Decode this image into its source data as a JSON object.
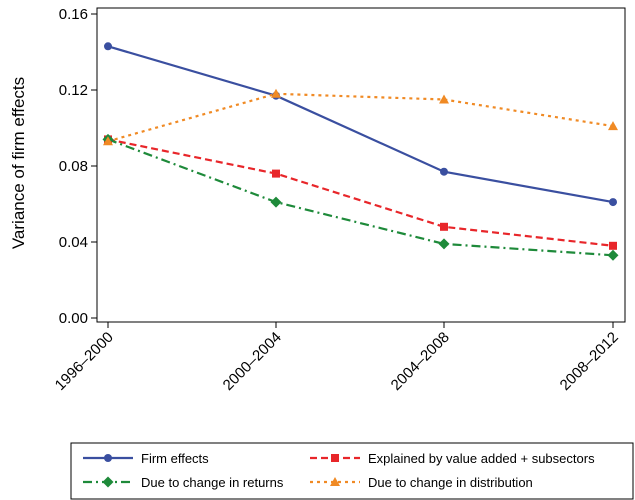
{
  "chart_data": {
    "type": "line",
    "ylabel": "Variance of firm effects",
    "xlabel": "",
    "categories": [
      "1996–2000",
      "2000–2004",
      "2004–2008",
      "2008–2012"
    ],
    "yticks": [
      "0.00",
      "0.04",
      "0.08",
      "0.12",
      "0.16"
    ],
    "ylim": [
      0,
      0.16
    ],
    "grid": false,
    "legend_position": "bottom",
    "series": [
      {
        "name": "Firm effects",
        "values": [
          0.143,
          0.117,
          0.077,
          0.061
        ],
        "color": "#3a4fa0",
        "style": "solid",
        "marker": "circle"
      },
      {
        "name": "Explained by value added + subsectors",
        "values": [
          0.094,
          0.076,
          0.048,
          0.038
        ],
        "color": "#e8262a",
        "style": "dashed",
        "marker": "square"
      },
      {
        "name": "Due to change in returns",
        "values": [
          0.094,
          0.061,
          0.039,
          0.033
        ],
        "color": "#1e8a3a",
        "style": "dashdot",
        "marker": "diamond"
      },
      {
        "name": "Due to change in distribution",
        "values": [
          0.093,
          0.118,
          0.115,
          0.101
        ],
        "color": "#f08a24",
        "style": "dotted",
        "marker": "triangle"
      }
    ]
  }
}
